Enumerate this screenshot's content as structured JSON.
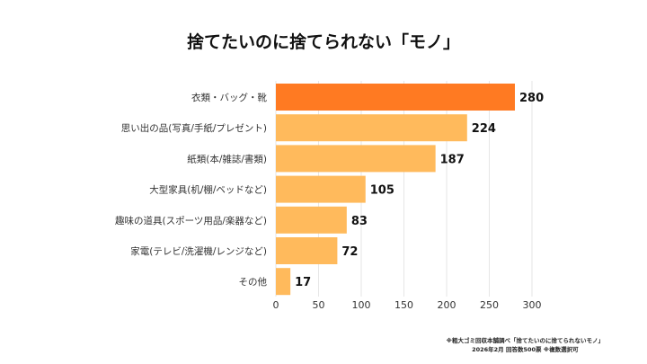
{
  "title": "捨てたいのに捨てられない「モノ」",
  "footnote": [
    "※粗大ゴミ回収本舗調べ「捨てたいのに捨てられないモノ」",
    "2026年2月 回答数500票 ※複数選択可"
  ],
  "colors": {
    "highlight": "#FF7A22",
    "bar": "#FFBA5C",
    "grid": "#E6E6E6"
  },
  "chart_data": {
    "type": "bar",
    "orientation": "horizontal",
    "categories": [
      "衣類・バッグ・靴",
      "思い出の品(写真/手紙/プレゼント)",
      "紙類(本/雑誌/書類)",
      "大型家具(机/棚/ベッドなど)",
      "趣味の道具(スポーツ用品/楽器など)",
      "家電(テレビ/洗濯機/レンジなど)",
      "その他"
    ],
    "values": [
      280,
      224,
      187,
      105,
      83,
      72,
      17
    ],
    "xlim": [
      0,
      300
    ],
    "xticks": [
      0,
      50,
      100,
      150,
      200,
      250,
      300
    ],
    "grid": true,
    "title": "捨てたいのに捨てられない「モノ」"
  }
}
